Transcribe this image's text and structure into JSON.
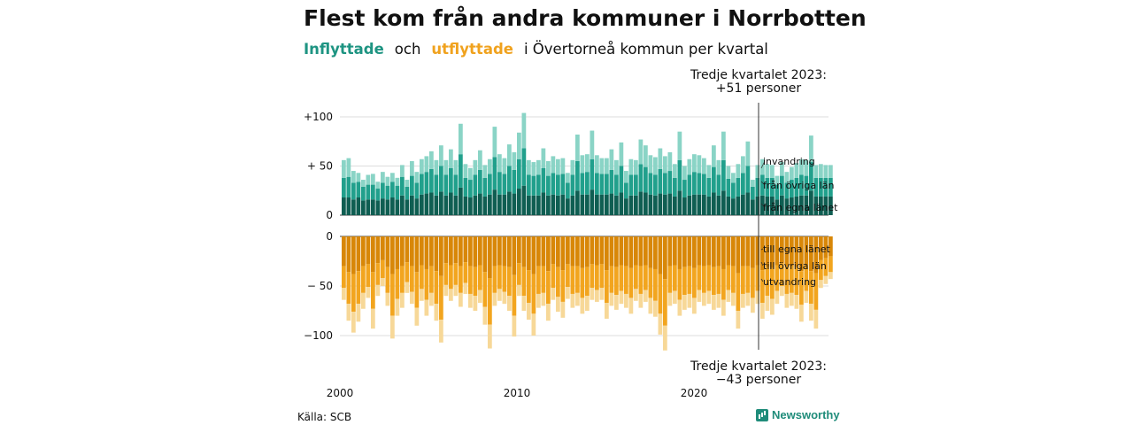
{
  "title": "Flest kom från andra kommuner i Norrbotten",
  "subtitle": {
    "inflyttade": "Inflyttade",
    "och": "och",
    "utflyttade": "utflyttade",
    "rest": "i Övertorneå  kommun  per  kvartal"
  },
  "source": "Källa: SCB",
  "logo": "Newsworthy",
  "colors": {
    "in_egna": "#0f5e52",
    "in_ovriga": "#21a08c",
    "in_invandring": "#8ad4c6",
    "out_egna": "#d88708",
    "out_ovriga": "#f2a51f",
    "out_utvandring": "#f7d898"
  },
  "chart_data": {
    "type": "bar",
    "stacked": true,
    "frequency": "quarterly",
    "start": "2000 Q1",
    "end": "2023 Q3",
    "x_ticks": [
      "2000",
      "2010",
      "2020"
    ],
    "y_ticks_top": [
      "+100",
      "+ 50",
      "0"
    ],
    "y_ticks_bottom": [
      "0",
      "− 50",
      "−100"
    ],
    "annotation_top": [
      "Tredje kvartalet 2023:",
      "+51 personer"
    ],
    "annotation_bottom": [
      "Tredje kvartalet 2023:",
      "−43 personer"
    ],
    "labels_in": [
      "invandring",
      "från övriga län",
      "från egna länet"
    ],
    "labels_out": [
      "till egna länet",
      "till övriga län",
      "utvandring"
    ],
    "series_in_totals": [
      56,
      58,
      45,
      43,
      36,
      41,
      42,
      34,
      44,
      39,
      43,
      38,
      51,
      36,
      55,
      44,
      57,
      60,
      65,
      56,
      71,
      56,
      67,
      56,
      93,
      52,
      48,
      56,
      66,
      51,
      57,
      90,
      62,
      58,
      72,
      64,
      84,
      104,
      56,
      54,
      56,
      68,
      55,
      60,
      57,
      58,
      43,
      56,
      82,
      61,
      62,
      86,
      61,
      58,
      58,
      67,
      56,
      74,
      45,
      57,
      56,
      77,
      71,
      61,
      59,
      68,
      60,
      64,
      52,
      85,
      50,
      57,
      62,
      61,
      58,
      51,
      71,
      56,
      85,
      50,
      43,
      52,
      60,
      75,
      36,
      51,
      57,
      52,
      51,
      40,
      54,
      44,
      49,
      53,
      57,
      56,
      81,
      51,
      52,
      51,
      51
    ],
    "series_in_components": {
      "egna": [
        18,
        18,
        16,
        18,
        15,
        16,
        16,
        15,
        17,
        16,
        18,
        16,
        20,
        16,
        20,
        17,
        21,
        22,
        23,
        20,
        24,
        20,
        23,
        20,
        28,
        19,
        18,
        20,
        22,
        19,
        21,
        26,
        21,
        21,
        24,
        22,
        27,
        30,
        20,
        20,
        20,
        23,
        20,
        21,
        20,
        21,
        17,
        20,
        25,
        21,
        21,
        26,
        21,
        21,
        21,
        22,
        20,
        23,
        17,
        20,
        20,
        24,
        23,
        21,
        20,
        22,
        21,
        22,
        19,
        25,
        18,
        20,
        21,
        21,
        21,
        19,
        23,
        20,
        25,
        19,
        17,
        19,
        21,
        23,
        16,
        19,
        20,
        19,
        19,
        16,
        20,
        17,
        18,
        19,
        20,
        20,
        25,
        19,
        19,
        19,
        19
      ],
      "ovriga": [
        20,
        21,
        17,
        16,
        14,
        15,
        15,
        12,
        16,
        14,
        16,
        14,
        19,
        13,
        20,
        16,
        21,
        22,
        24,
        21,
        26,
        21,
        25,
        21,
        34,
        19,
        18,
        21,
        24,
        19,
        21,
        33,
        23,
        21,
        26,
        24,
        30,
        38,
        21,
        20,
        21,
        25,
        20,
        22,
        21,
        21,
        16,
        21,
        30,
        22,
        23,
        31,
        22,
        21,
        21,
        24,
        21,
        27,
        16,
        21,
        21,
        28,
        26,
        22,
        21,
        25,
        22,
        23,
        19,
        31,
        18,
        21,
        23,
        22,
        21,
        19,
        26,
        21,
        31,
        18,
        16,
        19,
        22,
        27,
        13,
        19,
        21,
        19,
        19,
        15,
        20,
        16,
        18,
        19,
        21,
        20,
        29,
        19,
        19,
        19,
        19
      ],
      "invandring": [
        18,
        19,
        12,
        9,
        7,
        10,
        11,
        7,
        11,
        9,
        9,
        8,
        12,
        7,
        15,
        11,
        15,
        16,
        18,
        15,
        21,
        15,
        19,
        15,
        31,
        14,
        12,
        15,
        20,
        13,
        15,
        31,
        18,
        16,
        22,
        18,
        27,
        36,
        15,
        14,
        15,
        20,
        15,
        17,
        16,
        16,
        10,
        15,
        27,
        18,
        18,
        29,
        18,
        16,
        16,
        21,
        15,
        24,
        12,
        16,
        15,
        25,
        22,
        18,
        18,
        21,
        17,
        19,
        14,
        29,
        14,
        16,
        18,
        18,
        16,
        13,
        22,
        15,
        29,
        13,
        10,
        14,
        17,
        25,
        7,
        13,
        16,
        14,
        13,
        9,
        14,
        11,
        13,
        15,
        16,
        16,
        27,
        13,
        14,
        13,
        13
      ]
    },
    "series_out_totals": [
      -64,
      -85,
      -97,
      -86,
      -73,
      -62,
      -93,
      -60,
      -50,
      -70,
      -103,
      -80,
      -72,
      -57,
      -68,
      -90,
      -65,
      -80,
      -70,
      -85,
      -107,
      -60,
      -65,
      -60,
      -71,
      -58,
      -72,
      -75,
      -67,
      -89,
      -113,
      -70,
      -65,
      -68,
      -75,
      -101,
      -60,
      -75,
      -84,
      -100,
      -72,
      -70,
      -85,
      -64,
      -76,
      -82,
      -63,
      -72,
      -70,
      -78,
      -75,
      -64,
      -66,
      -64,
      -83,
      -70,
      -74,
      -68,
      -72,
      -78,
      -65,
      -72,
      -66,
      -78,
      -81,
      -99,
      -115,
      -70,
      -68,
      -80,
      -74,
      -72,
      -78,
      -66,
      -70,
      -68,
      -74,
      -72,
      -80,
      -66,
      -70,
      -93,
      -72,
      -70,
      -77,
      -68,
      -83,
      -75,
      -79,
      -68,
      -60,
      -72,
      -70,
      -73,
      -86,
      -67,
      -85,
      -93,
      -52,
      -48,
      -43
    ],
    "series_out_components": {
      "egna": [
        -30,
        -36,
        -38,
        -35,
        -30,
        -28,
        -36,
        -27,
        -24,
        -31,
        -38,
        -33,
        -30,
        -26,
        -30,
        -36,
        -29,
        -33,
        -30,
        -35,
        -40,
        -27,
        -29,
        -27,
        -30,
        -26,
        -30,
        -31,
        -29,
        -36,
        -42,
        -30,
        -29,
        -30,
        -31,
        -39,
        -27,
        -31,
        -34,
        -38,
        -30,
        -30,
        -35,
        -28,
        -31,
        -34,
        -28,
        -30,
        -30,
        -32,
        -31,
        -28,
        -29,
        -28,
        -34,
        -30,
        -31,
        -29,
        -30,
        -32,
        -29,
        -30,
        -29,
        -32,
        -33,
        -38,
        -43,
        -30,
        -29,
        -33,
        -31,
        -30,
        -32,
        -29,
        -30,
        -29,
        -31,
        -30,
        -33,
        -29,
        -30,
        -37,
        -30,
        -30,
        -32,
        -29,
        -34,
        -31,
        -32,
        -29,
        -27,
        -30,
        -30,
        -31,
        -35,
        -29,
        -35,
        -37,
        -24,
        -22,
        -20
      ],
      "ovriga": [
        -22,
        -32,
        -38,
        -33,
        -27,
        -23,
        -37,
        -22,
        -18,
        -26,
        -42,
        -30,
        -27,
        -20,
        -26,
        -36,
        -24,
        -31,
        -27,
        -33,
        -44,
        -22,
        -24,
        -22,
        -27,
        -21,
        -28,
        -29,
        -25,
        -35,
        -47,
        -27,
        -24,
        -26,
        -29,
        -41,
        -22,
        -29,
        -33,
        -40,
        -28,
        -27,
        -33,
        -24,
        -30,
        -32,
        -23,
        -28,
        -27,
        -30,
        -29,
        -24,
        -25,
        -24,
        -33,
        -27,
        -28,
        -26,
        -28,
        -30,
        -24,
        -28,
        -25,
        -30,
        -32,
        -40,
        -47,
        -27,
        -26,
        -31,
        -28,
        -28,
        -30,
        -25,
        -27,
        -26,
        -28,
        -28,
        -31,
        -25,
        -27,
        -38,
        -28,
        -27,
        -30,
        -26,
        -33,
        -29,
        -31,
        -26,
        -23,
        -28,
        -27,
        -28,
        -34,
        -26,
        -33,
        -37,
        -20,
        -18,
        -16
      ],
      "utvandring": [
        -12,
        -17,
        -21,
        -18,
        -16,
        -11,
        -20,
        -11,
        -8,
        -13,
        -23,
        -17,
        -15,
        -11,
        -12,
        -18,
        -12,
        -16,
        -13,
        -17,
        -23,
        -11,
        -12,
        -11,
        -14,
        -11,
        -14,
        -15,
        -13,
        -18,
        -24,
        -13,
        -12,
        -12,
        -15,
        -21,
        -11,
        -15,
        -17,
        -22,
        -14,
        -13,
        -17,
        -12,
        -15,
        -16,
        -12,
        -14,
        -13,
        -16,
        -15,
        -12,
        -12,
        -12,
        -16,
        -13,
        -15,
        -13,
        -14,
        -16,
        -12,
        -14,
        -12,
        -16,
        -16,
        -21,
        -25,
        -13,
        -13,
        -16,
        -15,
        -14,
        -16,
        -12,
        -13,
        -13,
        -15,
        -14,
        -16,
        -12,
        -13,
        -18,
        -14,
        -13,
        -15,
        -13,
        -16,
        -15,
        -16,
        -13,
        -10,
        -14,
        -13,
        -14,
        -17,
        -12,
        -17,
        -19,
        -8,
        -8,
        -7
      ]
    }
  }
}
